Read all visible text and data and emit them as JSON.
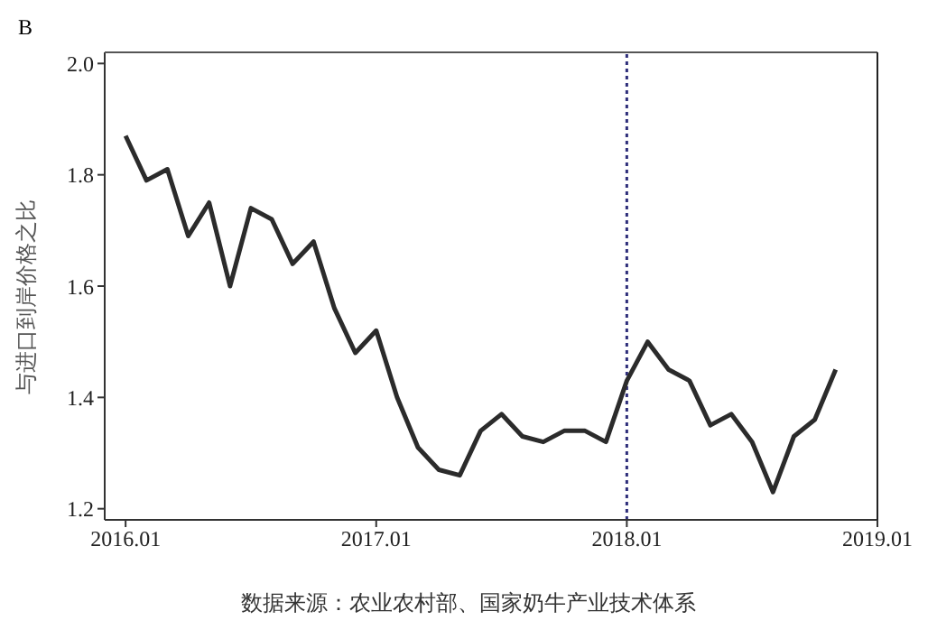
{
  "chart_data": {
    "type": "line",
    "title": "B",
    "ylabel": "与进口到岸价格之比",
    "x": [
      "2016-01",
      "2016-02",
      "2016-03",
      "2016-04",
      "2016-05",
      "2016-06",
      "2016-07",
      "2016-08",
      "2016-09",
      "2016-10",
      "2016-11",
      "2016-12",
      "2017-01",
      "2017-02",
      "2017-03",
      "2017-04",
      "2017-05",
      "2017-06",
      "2017-07",
      "2017-08",
      "2017-09",
      "2017-10",
      "2017-11",
      "2017-12",
      "2018-01",
      "2018-02",
      "2018-03",
      "2018-04",
      "2018-05",
      "2018-06",
      "2018-07",
      "2018-08",
      "2018-09",
      "2018-10",
      "2018-11"
    ],
    "series": [
      {
        "color": "#2b2b2b",
        "values": [
          1.87,
          1.79,
          1.81,
          1.69,
          1.75,
          1.6,
          1.74,
          1.72,
          1.64,
          1.68,
          1.56,
          1.48,
          1.52,
          1.4,
          1.31,
          1.27,
          1.26,
          1.34,
          1.37,
          1.33,
          1.32,
          1.34,
          1.34,
          1.32,
          1.43,
          1.5,
          1.45,
          1.43,
          1.35,
          1.37,
          1.32,
          1.23,
          1.33,
          1.36,
          1.45
        ]
      }
    ],
    "xlim": [
      "2015-12",
      "2019-01"
    ],
    "xticks": [
      {
        "value": "2016-01",
        "label": "2016.01"
      },
      {
        "value": "2017-01",
        "label": "2017.01"
      },
      {
        "value": "2018-01",
        "label": "2018.01"
      },
      {
        "value": "2019-01",
        "label": "2019.01"
      }
    ],
    "ylim": [
      1.18,
      2.02
    ],
    "yticks": [
      {
        "value": 1.2,
        "label": "1.2"
      },
      {
        "value": 1.4,
        "label": "1.4"
      },
      {
        "value": 1.6,
        "label": "1.6"
      },
      {
        "value": 1.8,
        "label": "1.8"
      },
      {
        "value": 2.0,
        "label": "2.0"
      }
    ],
    "ref_lines": [
      {
        "axis": "x",
        "value": "2018-01",
        "color": "#2e2e7a",
        "line_style": "dotted"
      }
    ],
    "grid": false,
    "legend": false,
    "marker": "none",
    "line_style": "solid",
    "annotations": [
      "数据来源：农业农村部、国家奶牛产业技术体系"
    ]
  }
}
